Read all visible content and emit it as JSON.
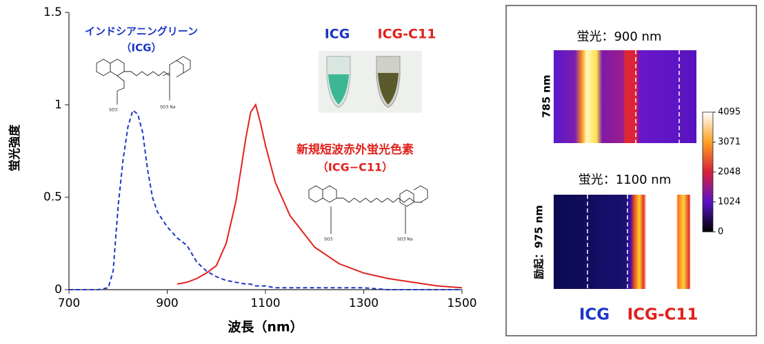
{
  "chart_data": {
    "type": "line",
    "xlabel": "波長（nm）",
    "ylabel": "蛍光強度",
    "x": [
      700,
      760,
      780,
      790,
      800,
      810,
      820,
      830,
      840,
      850,
      860,
      870,
      880,
      900,
      920,
      940,
      960,
      980,
      1000,
      1020,
      1040,
      1060,
      1070,
      1080,
      1090,
      1100,
      1120,
      1150,
      1200,
      1250,
      1300,
      1350,
      1400,
      1450,
      1500
    ],
    "series": [
      {
        "name": "インドシアニングリーン",
        "color": "#1a35c8",
        "dashed": true,
        "values": [
          0,
          0,
          0.01,
          0.1,
          0.45,
          0.7,
          0.88,
          0.97,
          0.95,
          0.85,
          0.65,
          0.5,
          0.42,
          0.34,
          0.28,
          0.24,
          0.15,
          0.1,
          0.07,
          0.05,
          0.04,
          0.03,
          0.03,
          0.02,
          0.02,
          0.02,
          0.01,
          0.01,
          0.01,
          0.01,
          0.01,
          0,
          0,
          0,
          0
        ]
      },
      {
        "name": "新規短波赤外蛍光色素",
        "color": "#e0211c",
        "dashed": false,
        "values": [
          null,
          null,
          null,
          null,
          null,
          null,
          null,
          null,
          null,
          null,
          null,
          null,
          null,
          null,
          0.03,
          0.04,
          0.06,
          0.09,
          0.13,
          0.25,
          0.48,
          0.82,
          0.96,
          1.0,
          0.9,
          0.78,
          0.58,
          0.4,
          0.23,
          0.14,
          0.09,
          0.06,
          0.04,
          0.02,
          0.01
        ]
      }
    ],
    "xlim": [
      700,
      1500
    ],
    "xticks": [
      700,
      900,
      1100,
      1300,
      1500
    ],
    "ylim": [
      0,
      1.5
    ],
    "yticks": [
      0,
      0.5,
      1,
      1.5
    ],
    "annotations": [
      "（ICG）",
      "（ICG−C11）"
    ],
    "photo_labels": [
      "ICG",
      "ICG-C11"
    ]
  },
  "image_panel": {
    "top_title": "蛍光：900 nm",
    "top_side": "785 nm",
    "bottom_title": "蛍光：1100 nm",
    "bottom_side": "励起：975 nm",
    "labels": [
      "ICG",
      "ICG-C11"
    ],
    "colorbar": {
      "ticks": [
        0,
        1024,
        2048,
        3071,
        4095
      ]
    }
  }
}
